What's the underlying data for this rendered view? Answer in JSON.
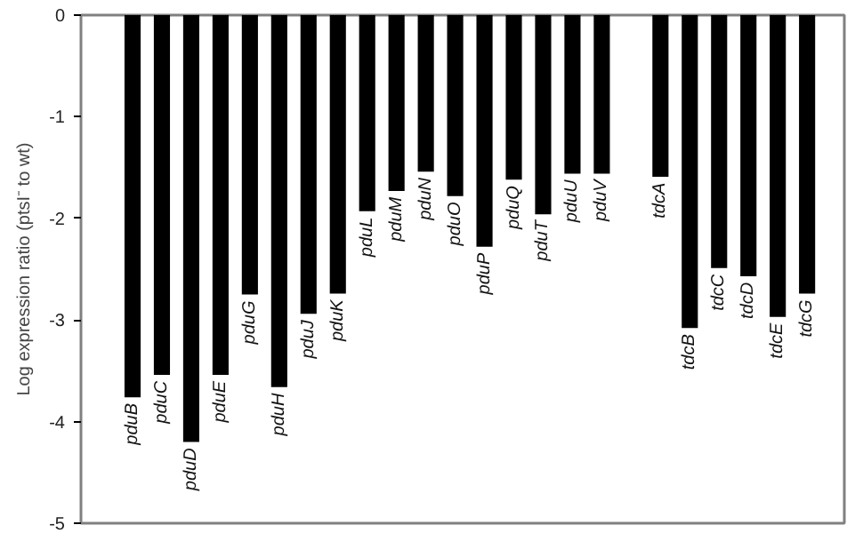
{
  "chart_data": {
    "type": "bar",
    "ylabel": "Log expression ratio (ptsI⁻ to wt)",
    "categories": [
      "pduB",
      "pduC",
      "pduD",
      "pduE",
      "pduG",
      "pduH",
      "pduJ",
      "pduK",
      "pduL",
      "pduM",
      "pduN",
      "pduO",
      "pduP",
      "pduQ",
      "pduT",
      "pduU",
      "pduV",
      null,
      "tdcA",
      "tdcB",
      "tdcC",
      "tdcD",
      "tdcE",
      "tdcG"
    ],
    "values": [
      -3.76,
      -3.54,
      -4.2,
      -3.54,
      -2.75,
      -3.66,
      -2.94,
      -2.74,
      -1.93,
      -1.73,
      -1.54,
      -1.78,
      -2.28,
      -1.62,
      -1.96,
      -1.56,
      -1.56,
      null,
      -1.59,
      -3.08,
      -2.49,
      -2.57,
      -2.97,
      -2.74
    ],
    "color": "#000000",
    "ylim": [
      -5,
      0
    ],
    "yticks": [
      0,
      -1,
      -2,
      -3,
      -4,
      -5
    ],
    "grid": false,
    "tick_labels": "y"
  }
}
